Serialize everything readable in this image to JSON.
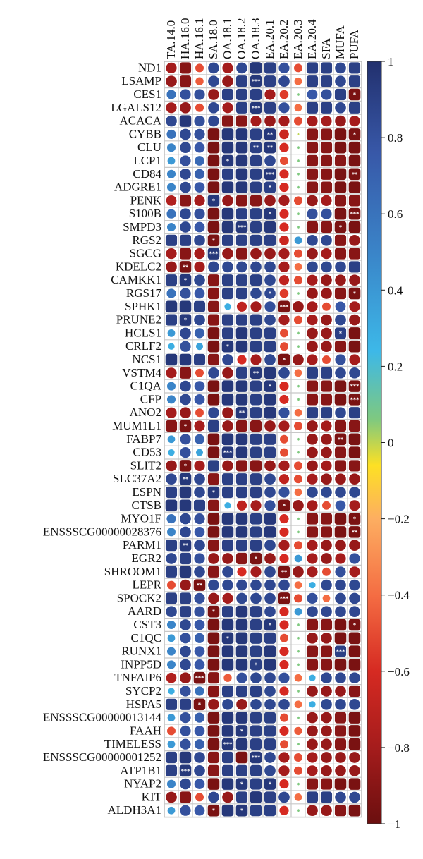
{
  "chart_data": {
    "type": "heatmap",
    "title": "",
    "xlabel": "",
    "ylabel": "",
    "columns": [
      "TA.14.0",
      "HA.16.0",
      "HA.16.1",
      "SA.18.0",
      "OA.18.1",
      "OA.18.2",
      "OA.18.3",
      "EA.20.1",
      "EA.20.2",
      "EA.20.3",
      "EA.20.4",
      "SFA",
      "MUFA",
      "PUFA"
    ],
    "rows": [
      "ND1",
      "LSAMP",
      "CES1",
      "LGALS12",
      "ACACA",
      "CYBB",
      "CLU",
      "LCP1",
      "CD84",
      "ADGRE1",
      "PENK",
      "S100B",
      "SMPD3",
      "RGS2",
      "SGCG",
      "KDELC2",
      "CAMKK1",
      "RGS17",
      "SPHK1",
      "PRUNE2",
      "HCLS1",
      "CRLF2",
      "NCS1",
      "VSTM4",
      "C1QA",
      "CFP",
      "ANO2",
      "MUM1L1",
      "FABP7",
      "CD53",
      "SLIT2",
      "SLC37A2",
      "ESPN",
      "CTSB",
      "MYO1F",
      "ENSSSCG00000028376",
      "PARM1",
      "EGR2",
      "SHROOM1",
      "LEPR",
      "SPOCK2",
      "AARD",
      "CST3",
      "C1QC",
      "RUNX1",
      "INPP5D",
      "TNFAIP6",
      "SYCP2",
      "HSPA5",
      "ENSSSCG00000013144",
      "FAAH",
      "TIMELESS",
      "ENSSSCG00000001252",
      "ATP1B1",
      "NYAP2",
      "KIT",
      "ALDH3A1"
    ],
    "values": [
      [
        -0.8,
        -0.9,
        -0.5,
        0.85,
        -0.8,
        0.85,
        0.95,
        0.9,
        0.8,
        -0.5,
        0.9,
        0.9,
        0.85,
        0.9
      ],
      [
        -0.85,
        -0.9,
        -0.45,
        0.85,
        -0.85,
        0.9,
        0.95,
        0.9,
        0.85,
        -0.4,
        0.9,
        0.9,
        0.85,
        0.9
      ],
      [
        0.6,
        0.8,
        0.8,
        -0.85,
        0.9,
        0.9,
        0.9,
        -0.8,
        -0.55,
        0.05,
        0.75,
        0.8,
        0.9,
        -0.95
      ],
      [
        -0.8,
        -0.85,
        -0.5,
        0.85,
        -0.8,
        0.9,
        0.95,
        0.9,
        0.8,
        -0.4,
        0.9,
        0.9,
        0.85,
        0.9
      ],
      [
        0.85,
        0.95,
        0.8,
        0.85,
        -0.9,
        -0.9,
        -0.8,
        -0.85,
        -0.8,
        -0.5,
        -0.8,
        -0.8,
        -0.85,
        -0.8
      ],
      [
        0.6,
        0.85,
        0.8,
        -0.95,
        0.95,
        0.95,
        0.9,
        0.95,
        -0.65,
        0.0,
        -0.9,
        -0.9,
        -0.95,
        -0.95
      ],
      [
        0.5,
        0.85,
        0.75,
        -0.95,
        0.95,
        0.95,
        0.9,
        0.95,
        -0.6,
        0.05,
        -0.9,
        -0.9,
        -0.95,
        -0.95
      ],
      [
        0.4,
        0.8,
        0.65,
        -0.95,
        0.95,
        0.95,
        0.9,
        0.85,
        -0.5,
        0.05,
        -0.9,
        -0.9,
        -0.9,
        -0.95
      ],
      [
        0.5,
        0.85,
        0.7,
        -0.95,
        0.9,
        0.95,
        0.9,
        0.95,
        -0.6,
        0.05,
        -0.9,
        -0.9,
        -0.95,
        -0.95
      ],
      [
        0.5,
        0.85,
        0.75,
        -0.95,
        0.95,
        0.95,
        0.9,
        0.9,
        -0.6,
        0.05,
        -0.9,
        -0.9,
        -0.95,
        -0.95
      ],
      [
        -0.75,
        -0.9,
        -0.8,
        0.95,
        -0.85,
        -0.9,
        -0.9,
        -0.85,
        -0.8,
        -0.5,
        -0.85,
        -0.8,
        -0.9,
        -0.9
      ],
      [
        0.6,
        0.85,
        0.8,
        -0.95,
        0.95,
        0.9,
        0.9,
        0.95,
        -0.6,
        0.05,
        0.8,
        0.8,
        -0.95,
        -0.95
      ],
      [
        0.5,
        0.85,
        0.75,
        -0.95,
        0.95,
        0.95,
        0.9,
        0.95,
        -0.6,
        0.05,
        -0.9,
        -0.9,
        -0.95,
        -0.95
      ],
      [
        0.9,
        0.9,
        0.85,
        -0.95,
        0.9,
        0.9,
        0.9,
        0.9,
        -0.65,
        0.4,
        0.85,
        0.85,
        -0.9,
        -0.85
      ],
      [
        -0.8,
        -0.9,
        -0.8,
        0.95,
        -0.85,
        -0.9,
        -0.85,
        -0.85,
        -0.8,
        -0.5,
        -0.85,
        -0.8,
        -0.9,
        -0.9
      ],
      [
        -0.85,
        -0.95,
        -0.8,
        0.85,
        0.85,
        0.85,
        0.85,
        0.85,
        -0.8,
        -0.4,
        0.85,
        0.85,
        0.85,
        0.9
      ],
      [
        0.9,
        0.95,
        0.85,
        -0.9,
        0.9,
        0.9,
        0.9,
        0.85,
        -0.7,
        -0.5,
        -0.8,
        -0.85,
        -0.85,
        -0.85
      ],
      [
        0.6,
        0.8,
        0.75,
        -0.9,
        0.9,
        0.9,
        0.85,
        0.85,
        -0.55,
        0.05,
        -0.85,
        -0.85,
        -0.9,
        -0.95
      ],
      [
        0.95,
        0.95,
        0.9,
        -0.9,
        0.3,
        -0.7,
        -0.8,
        0.8,
        -0.95,
        -0.85,
        -0.8,
        -0.5,
        0.75,
        -0.8
      ],
      [
        0.9,
        0.95,
        0.85,
        -0.9,
        0.9,
        0.9,
        0.9,
        0.85,
        -0.8,
        -0.5,
        -0.8,
        -0.85,
        0.85,
        -0.85
      ],
      [
        0.4,
        0.85,
        0.7,
        -0.95,
        0.9,
        0.95,
        0.9,
        0.9,
        -0.5,
        0.05,
        -0.85,
        -0.85,
        0.9,
        -0.95
      ],
      [
        0.3,
        0.8,
        0.35,
        -0.95,
        0.95,
        0.95,
        0.9,
        0.9,
        -0.5,
        0.05,
        -0.85,
        -0.85,
        -0.9,
        -0.95
      ],
      [
        0.95,
        0.95,
        0.9,
        -0.9,
        0.85,
        -0.6,
        -0.8,
        0.85,
        -0.95,
        -0.85,
        -0.8,
        -0.5,
        0.8,
        -0.8
      ],
      [
        -0.8,
        -0.9,
        -0.5,
        0.85,
        -0.85,
        0.9,
        0.95,
        0.95,
        0.85,
        -0.4,
        0.9,
        0.9,
        0.85,
        0.85
      ],
      [
        0.5,
        0.85,
        0.75,
        -0.95,
        0.95,
        0.95,
        0.9,
        0.95,
        -0.6,
        0.05,
        -0.9,
        -0.9,
        -0.95,
        -0.95
      ],
      [
        0.5,
        0.85,
        0.75,
        -0.95,
        0.95,
        0.95,
        0.9,
        0.95,
        -0.6,
        0.05,
        -0.9,
        -0.9,
        -0.95,
        -0.95
      ],
      [
        -0.8,
        -0.85,
        -0.5,
        0.85,
        -0.85,
        0.95,
        0.9,
        0.95,
        0.8,
        -0.4,
        0.9,
        0.9,
        0.85,
        0.9
      ],
      [
        -0.9,
        -0.95,
        -0.8,
        0.9,
        -0.85,
        -0.9,
        -0.9,
        -0.85,
        -0.8,
        -0.5,
        -0.85,
        -0.8,
        -0.9,
        -0.9
      ],
      [
        0.4,
        0.8,
        0.7,
        -0.95,
        0.95,
        0.95,
        0.9,
        0.9,
        -0.5,
        0.05,
        -0.85,
        -0.85,
        -0.95,
        -0.95
      ],
      [
        0.3,
        0.8,
        0.35,
        -0.95,
        0.95,
        0.95,
        0.9,
        0.9,
        -0.5,
        0.05,
        -0.85,
        -0.85,
        -0.9,
        -0.95
      ],
      [
        -0.85,
        -0.95,
        -0.8,
        0.9,
        -0.85,
        -0.9,
        -0.9,
        -0.85,
        -0.8,
        -0.5,
        -0.85,
        -0.8,
        -0.9,
        -0.9
      ],
      [
        0.85,
        0.95,
        0.85,
        -0.9,
        0.9,
        0.9,
        0.9,
        0.85,
        -0.7,
        -0.5,
        -0.8,
        -0.85,
        -0.85,
        -0.85
      ],
      [
        0.9,
        0.95,
        0.85,
        0.95,
        0.9,
        0.9,
        0.9,
        0.85,
        0.8,
        -0.4,
        0.85,
        0.85,
        0.85,
        0.85
      ],
      [
        0.95,
        0.95,
        0.9,
        -0.9,
        0.3,
        -0.7,
        -0.8,
        0.8,
        -0.95,
        -0.85,
        -0.8,
        -0.5,
        0.75,
        -0.8
      ],
      [
        0.6,
        0.85,
        0.8,
        -0.95,
        0.95,
        0.95,
        0.9,
        0.95,
        -0.6,
        0.05,
        -0.9,
        -0.9,
        -0.95,
        -0.95
      ],
      [
        0.5,
        0.85,
        0.75,
        -0.95,
        0.95,
        0.95,
        0.9,
        0.95,
        -0.6,
        0.05,
        -0.9,
        -0.9,
        -0.95,
        -0.95
      ],
      [
        0.9,
        0.95,
        0.85,
        -0.9,
        0.9,
        0.9,
        0.9,
        0.85,
        -0.8,
        -0.5,
        -0.8,
        -0.85,
        -0.85,
        -0.85
      ],
      [
        0.85,
        0.9,
        0.8,
        -0.85,
        -0.85,
        -0.9,
        -0.95,
        -0.85,
        -0.6,
        0.4,
        -0.8,
        -0.85,
        -0.8,
        0.8
      ],
      [
        0.9,
        0.95,
        0.85,
        -0.9,
        0.85,
        -0.6,
        -0.8,
        0.85,
        -0.95,
        -0.85,
        -0.8,
        -0.5,
        0.8,
        -0.8
      ],
      [
        -0.5,
        -0.85,
        -0.95,
        0.85,
        0.85,
        0.85,
        0.85,
        0.85,
        0.85,
        -0.4,
        0.3,
        0.85,
        0.85,
        0.85
      ],
      [
        0.9,
        0.9,
        0.8,
        -0.85,
        -0.8,
        0.85,
        0.85,
        0.85,
        -0.95,
        -0.5,
        0.8,
        -0.4,
        0.85,
        0.85
      ],
      [
        0.85,
        0.9,
        0.8,
        -0.95,
        0.9,
        0.95,
        0.9,
        0.85,
        -0.6,
        0.4,
        0.85,
        0.85,
        0.85,
        0.85
      ],
      [
        0.5,
        0.85,
        0.75,
        -0.95,
        0.95,
        0.95,
        0.9,
        0.95,
        -0.6,
        0.05,
        -0.9,
        -0.9,
        -0.95,
        -0.95
      ],
      [
        0.4,
        0.8,
        0.7,
        -0.95,
        0.95,
        0.95,
        0.9,
        0.9,
        -0.5,
        0.05,
        -0.85,
        -0.85,
        -0.95,
        -0.95
      ],
      [
        0.5,
        0.85,
        0.75,
        -0.95,
        0.95,
        0.95,
        0.9,
        0.95,
        -0.6,
        0.05,
        -0.9,
        -0.9,
        0.9,
        -0.95
      ],
      [
        0.5,
        0.85,
        0.75,
        -0.95,
        0.95,
        0.95,
        0.9,
        0.95,
        -0.6,
        0.05,
        -0.9,
        -0.9,
        -0.95,
        -0.95
      ],
      [
        -0.75,
        -0.85,
        -0.95,
        -0.9,
        -0.45,
        0.8,
        0.85,
        0.85,
        0.8,
        -0.4,
        0.3,
        0.85,
        0.85,
        0.85
      ],
      [
        0.3,
        0.8,
        0.6,
        -0.9,
        0.9,
        0.9,
        0.9,
        0.85,
        -0.6,
        0.05,
        -0.85,
        -0.85,
        -0.85,
        -0.9
      ],
      [
        0.9,
        0.9,
        -0.95,
        -0.85,
        0.85,
        -0.85,
        0.85,
        0.85,
        0.85,
        -0.4,
        0.3,
        0.85,
        0.85,
        0.85
      ],
      [
        0.4,
        0.8,
        0.7,
        -0.95,
        0.95,
        0.95,
        0.9,
        0.9,
        -0.5,
        0.05,
        -0.85,
        -0.85,
        -0.9,
        -0.95
      ],
      [
        -0.5,
        0.8,
        0.75,
        -0.95,
        0.95,
        0.95,
        0.9,
        0.9,
        -0.6,
        -0.45,
        -0.85,
        -0.85,
        -0.9,
        -0.95
      ],
      [
        0.4,
        0.8,
        0.7,
        -0.95,
        0.95,
        0.95,
        0.9,
        0.9,
        -0.5,
        0.05,
        -0.85,
        -0.85,
        -0.9,
        -0.95
      ],
      [
        0.9,
        0.95,
        0.85,
        -0.9,
        0.9,
        -0.95,
        0.95,
        0.85,
        -0.8,
        -0.5,
        -0.8,
        -0.85,
        -0.85,
        -0.85
      ],
      [
        0.9,
        0.95,
        0.85,
        -0.9,
        0.9,
        0.9,
        0.9,
        0.85,
        -0.8,
        -0.5,
        -0.8,
        -0.85,
        -0.85,
        -0.85
      ],
      [
        0.5,
        0.85,
        0.75,
        -0.95,
        0.95,
        0.95,
        0.9,
        0.95,
        -0.6,
        0.05,
        -0.9,
        -0.9,
        -0.95,
        -0.95
      ],
      [
        -0.85,
        -0.9,
        -0.5,
        0.85,
        -0.85,
        0.9,
        0.95,
        0.9,
        0.85,
        -0.4,
        0.9,
        0.9,
        0.85,
        0.85
      ],
      [
        0.4,
        0.8,
        0.75,
        -0.95,
        0.95,
        0.95,
        0.9,
        0.9,
        -0.6,
        0.05,
        -0.85,
        -0.85,
        -0.9,
        -0.95
      ]
    ],
    "stars": [
      [
        6,
        6,
        "**"
      ],
      [
        1,
        6,
        "***"
      ],
      [
        2,
        13,
        "*"
      ],
      [
        3,
        6,
        "***"
      ],
      [
        5,
        7,
        "**"
      ],
      [
        5,
        13,
        "*"
      ],
      [
        6,
        7,
        "**"
      ],
      [
        7,
        4,
        "*"
      ],
      [
        8,
        7,
        "***"
      ],
      [
        8,
        13,
        "**"
      ],
      [
        9,
        7,
        "*"
      ],
      [
        10,
        3,
        "*"
      ],
      [
        11,
        7,
        "*"
      ],
      [
        11,
        13,
        "***"
      ],
      [
        12,
        5,
        "***"
      ],
      [
        12,
        12,
        "*"
      ],
      [
        13,
        3,
        "*"
      ],
      [
        14,
        3,
        "***"
      ],
      [
        15,
        1,
        "**"
      ],
      [
        16,
        1,
        "*"
      ],
      [
        17,
        7,
        "*"
      ],
      [
        17,
        13,
        "*"
      ],
      [
        18,
        8,
        "***"
      ],
      [
        19,
        1,
        "*"
      ],
      [
        20,
        12,
        "*"
      ],
      [
        21,
        4,
        "*"
      ],
      [
        22,
        8,
        "*"
      ],
      [
        23,
        6,
        "**"
      ],
      [
        24,
        7,
        "*"
      ],
      [
        24,
        13,
        "***"
      ],
      [
        25,
        13,
        "***"
      ],
      [
        26,
        5,
        "**"
      ],
      [
        27,
        1,
        "*"
      ],
      [
        28,
        12,
        "**"
      ],
      [
        29,
        4,
        "***"
      ],
      [
        30,
        1,
        "*"
      ],
      [
        31,
        1,
        "**"
      ],
      [
        32,
        3,
        "*"
      ],
      [
        33,
        8,
        "*"
      ],
      [
        34,
        13,
        "*"
      ],
      [
        35,
        13,
        "**"
      ],
      [
        36,
        1,
        "**"
      ],
      [
        37,
        6,
        "*"
      ],
      [
        38,
        8,
        "**"
      ],
      [
        39,
        2,
        "**"
      ],
      [
        40,
        8,
        "***"
      ],
      [
        41,
        3,
        "*"
      ],
      [
        42,
        7,
        "*"
      ],
      [
        42,
        13,
        "*"
      ],
      [
        43,
        4,
        "*"
      ],
      [
        44,
        12,
        "***"
      ],
      [
        45,
        6,
        "*"
      ],
      [
        46,
        2,
        "***"
      ],
      [
        48,
        2,
        "*"
      ],
      [
        50,
        5,
        "*"
      ],
      [
        51,
        4,
        "***"
      ],
      [
        52,
        6,
        "***"
      ],
      [
        53,
        1,
        "***"
      ],
      [
        54,
        5,
        "*"
      ],
      [
        54,
        7,
        "*"
      ],
      [
        56,
        5,
        "*"
      ],
      [
        56,
        3,
        "*"
      ]
    ],
    "colorbar": {
      "ticks": [
        1,
        0.8,
        0.6,
        0.4,
        0.2,
        0,
        -0.2,
        -0.4,
        -0.6,
        -0.8,
        -1
      ],
      "tick_labels": [
        "1",
        "0.8",
        "0.6",
        "0.4",
        "0.2",
        "0",
        "−0.2",
        "−0.4",
        "−0.6",
        "−0.8",
        "−1"
      ],
      "range": [
        -1,
        1
      ],
      "colors": [
        "#6b0f0f",
        "#d62a22",
        "#f46d43",
        "#fdae61",
        "#fde024",
        "#7fc97f",
        "#3db8e8",
        "#3a84c8",
        "#3858a8",
        "#22306e"
      ]
    },
    "grid": true,
    "legend_position": "right"
  }
}
